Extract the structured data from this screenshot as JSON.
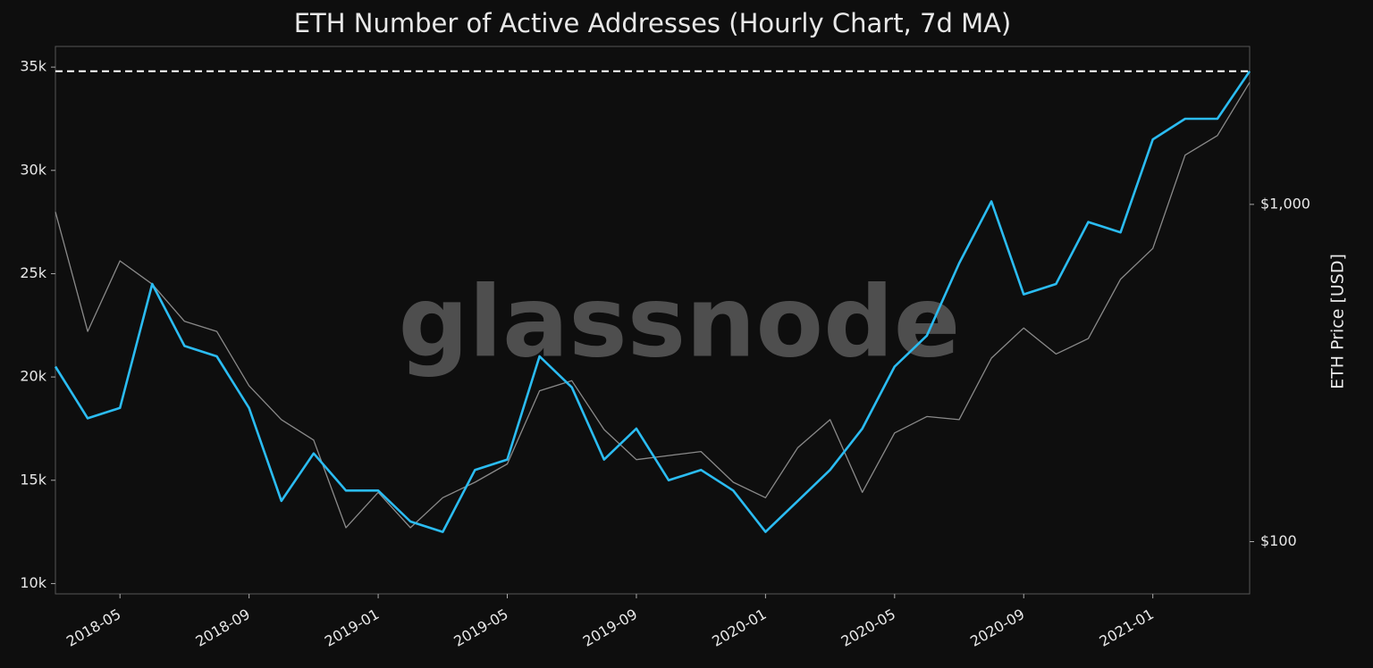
{
  "chart_data": {
    "type": "line",
    "title": "ETH Number of Active Addresses (Hourly Chart, 7d MA)",
    "watermark": "glassnode",
    "y2_label": "ETH Price [USD]",
    "x": [
      "2018-03",
      "2018-04",
      "2018-05",
      "2018-06",
      "2018-07",
      "2018-08",
      "2018-09",
      "2018-10",
      "2018-11",
      "2018-12",
      "2019-01",
      "2019-02",
      "2019-03",
      "2019-04",
      "2019-05",
      "2019-06",
      "2019-07",
      "2019-08",
      "2019-09",
      "2019-10",
      "2019-11",
      "2019-12",
      "2020-01",
      "2020-02",
      "2020-03",
      "2020-04",
      "2020-05",
      "2020-06",
      "2020-07",
      "2020-08",
      "2020-09",
      "2020-10",
      "2020-11",
      "2020-12",
      "2021-01",
      "2021-02",
      "2021-03",
      "2021-04"
    ],
    "series": [
      {
        "name": "ETH Price [USD]",
        "color": "#8a8a8a",
        "axis": "y2",
        "values": [
          950,
          420,
          680,
          580,
          450,
          420,
          290,
          230,
          200,
          110,
          140,
          110,
          135,
          150,
          170,
          280,
          300,
          215,
          175,
          180,
          185,
          150,
          135,
          190,
          230,
          140,
          210,
          235,
          230,
          350,
          430,
          360,
          400,
          600,
          740,
          1400,
          1600,
          2300
        ]
      },
      {
        "name": "Active Addresses",
        "color": "#2bbcf2",
        "axis": "y",
        "values": [
          20500,
          18000,
          18500,
          24500,
          21500,
          21000,
          18500,
          14000,
          16300,
          14500,
          14500,
          13000,
          12500,
          15500,
          16000,
          21000,
          19500,
          16000,
          17500,
          15000,
          15500,
          14500,
          12500,
          14000,
          15500,
          17500,
          20500,
          22000,
          25500,
          28500,
          24000,
          24500,
          27500,
          27000,
          31500,
          32500,
          32500,
          34800
        ]
      }
    ],
    "reference_line": 34800,
    "xlim": [
      "2018-03",
      "2021-04"
    ],
    "xticks": [
      "2018-05",
      "2018-09",
      "2019-01",
      "2019-05",
      "2019-09",
      "2020-01",
      "2020-05",
      "2020-09",
      "2021-01"
    ],
    "ylim": [
      9500,
      36000
    ],
    "yticks": [
      {
        "value": 10000,
        "label": "10k"
      },
      {
        "value": 15000,
        "label": "15k"
      },
      {
        "value": 20000,
        "label": "20k"
      },
      {
        "value": 25000,
        "label": "25k"
      },
      {
        "value": 30000,
        "label": "30k"
      },
      {
        "value": 35000,
        "label": "35k"
      }
    ],
    "y2lim": [
      70,
      2940
    ],
    "y2scale": "log",
    "y2ticks": [
      {
        "value": 100,
        "label": "$100"
      },
      {
        "value": 1000,
        "label": "$1,000"
      }
    ]
  }
}
